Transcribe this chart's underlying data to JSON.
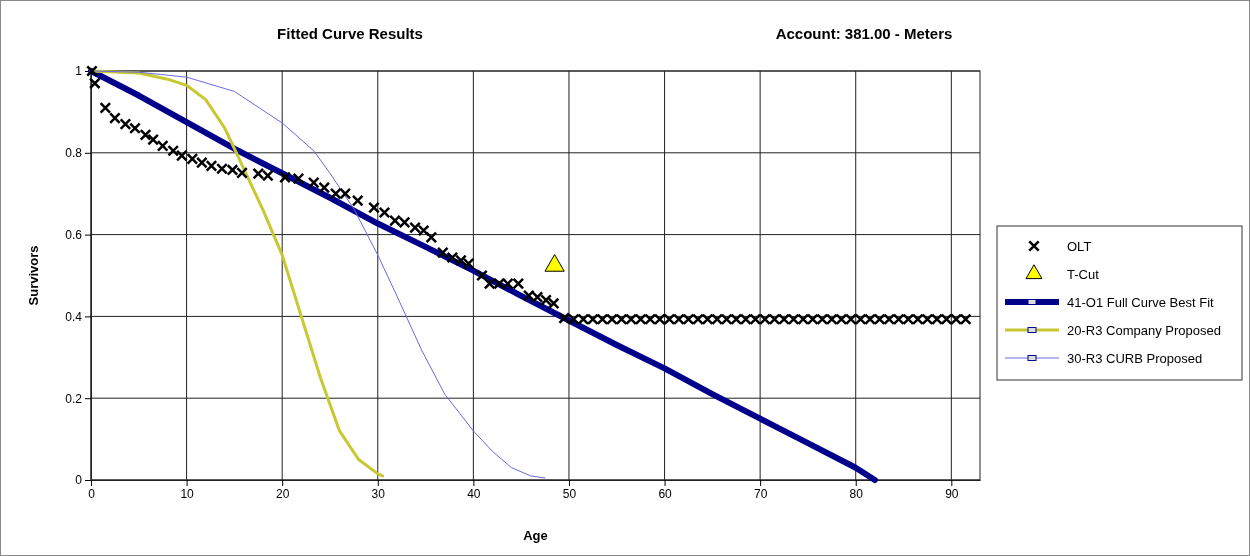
{
  "chart_data": {
    "type": "scatter",
    "title": "Fitted Curve Results",
    "subtitle": "Account:  381.00 - Meters",
    "xlabel": "Age",
    "ylabel": "Survivors",
    "xlim": [
      0,
      93
    ],
    "xticks": [
      0,
      10,
      20,
      30,
      40,
      50,
      60,
      70,
      80,
      90
    ],
    "ylim": [
      0,
      1
    ],
    "yticks": [
      0,
      0.2,
      0.4,
      0.6,
      0.8,
      1
    ],
    "grid": true,
    "legend": "right",
    "series": [
      {
        "name": "OLT",
        "marker": "cross",
        "color": "#000000",
        "x": [
          0.1,
          0.4,
          1.5,
          2.5,
          3.6,
          4.6,
          5.7,
          6.5,
          7.5,
          8.6,
          9.5,
          10.6,
          11.6,
          12.6,
          13.7,
          14.8,
          15.8,
          17.5,
          18.5,
          20.3,
          21.7,
          23.3,
          24.4,
          25.6,
          26.6,
          27.9,
          29.6,
          30.7,
          31.8,
          32.8,
          33.9,
          34.8,
          35.6,
          36.8,
          37.8,
          38.7,
          39.5,
          40.9,
          41.7,
          42.7,
          43.6,
          44.7,
          45.8,
          46.7,
          47.6,
          48.4,
          49.5,
          50.5,
          51.5,
          52.5,
          53.5,
          54.5,
          55.5,
          56.5,
          57.5,
          58.5,
          59.5,
          60.5,
          61.5,
          62.5,
          63.5,
          64.5,
          65.5,
          66.5,
          67.5,
          68.5,
          69.5,
          70.5,
          71.5,
          72.5,
          73.5,
          74.5,
          75.5,
          76.5,
          77.5,
          78.5,
          79.5,
          80.5,
          81.5,
          82.5,
          83.5,
          84.5,
          85.5,
          86.5,
          87.5,
          88.5,
          89.5,
          90.5,
          91.5
        ],
        "values": [
          1,
          0.97,
          0.91,
          0.885,
          0.87,
          0.86,
          0.844,
          0.832,
          0.817,
          0.805,
          0.793,
          0.785,
          0.776,
          0.768,
          0.761,
          0.758,
          0.751,
          0.749,
          0.744,
          0.74,
          0.737,
          0.727,
          0.715,
          0.7,
          0.7,
          0.683,
          0.666,
          0.654,
          0.634,
          0.63,
          0.617,
          0.61,
          0.593,
          0.556,
          0.544,
          0.537,
          0.529,
          0.5,
          0.48,
          0.48,
          0.48,
          0.48,
          0.451,
          0.447,
          0.44,
          0.432,
          0.396,
          0.393,
          0.393,
          0.393,
          0.393,
          0.393,
          0.393,
          0.393,
          0.393,
          0.393,
          0.393,
          0.393,
          0.393,
          0.393,
          0.393,
          0.393,
          0.393,
          0.393,
          0.393,
          0.393,
          0.393,
          0.393,
          0.393,
          0.393,
          0.393,
          0.393,
          0.393,
          0.393,
          0.393,
          0.393,
          0.393,
          0.393,
          0.393,
          0.393,
          0.393,
          0.393,
          0.393,
          0.393,
          0.393,
          0.393,
          0.393,
          0.393,
          0.393
        ]
      },
      {
        "name": "T-Cut",
        "marker": "triangle",
        "color": "#ffff00",
        "x": [
          48.5
        ],
        "values": [
          0.524
        ]
      },
      {
        "name": "41-O1 Full Curve Best Fit",
        "type": "line",
        "color": "#00008b",
        "x": [
          0,
          5,
          10,
          15,
          20,
          25,
          30,
          35,
          40,
          45,
          50,
          55,
          60,
          65,
          70,
          75,
          80,
          82
        ],
        "values": [
          1,
          0.94,
          0.875,
          0.81,
          0.75,
          0.69,
          0.627,
          0.57,
          0.512,
          0.45,
          0.39,
          0.33,
          0.273,
          0.21,
          0.15,
          0.09,
          0.03,
          0
        ]
      },
      {
        "name": "20-R3 Company Proposed",
        "type": "line",
        "color": "#c8c832",
        "x": [
          0,
          5,
          8,
          10,
          12,
          14,
          15,
          16,
          18,
          20,
          22,
          24,
          26,
          28,
          30,
          30.5
        ],
        "values": [
          1,
          0.995,
          0.98,
          0.965,
          0.93,
          0.86,
          0.81,
          0.76,
          0.66,
          0.55,
          0.4,
          0.25,
          0.12,
          0.05,
          0.015,
          0.01
        ]
      },
      {
        "name": "30-R3 CURB Proposed",
        "type": "line",
        "color": "#6a6ae0",
        "x": [
          0,
          5,
          10,
          15,
          20,
          23.3,
          25,
          27.5,
          30,
          32,
          34.6,
          37,
          40,
          42,
          44,
          46,
          47.5
        ],
        "values": [
          1,
          0.997,
          0.985,
          0.95,
          0.873,
          0.805,
          0.75,
          0.663,
          0.55,
          0.45,
          0.317,
          0.21,
          0.12,
          0.07,
          0.03,
          0.01,
          0.005
        ]
      }
    ]
  }
}
